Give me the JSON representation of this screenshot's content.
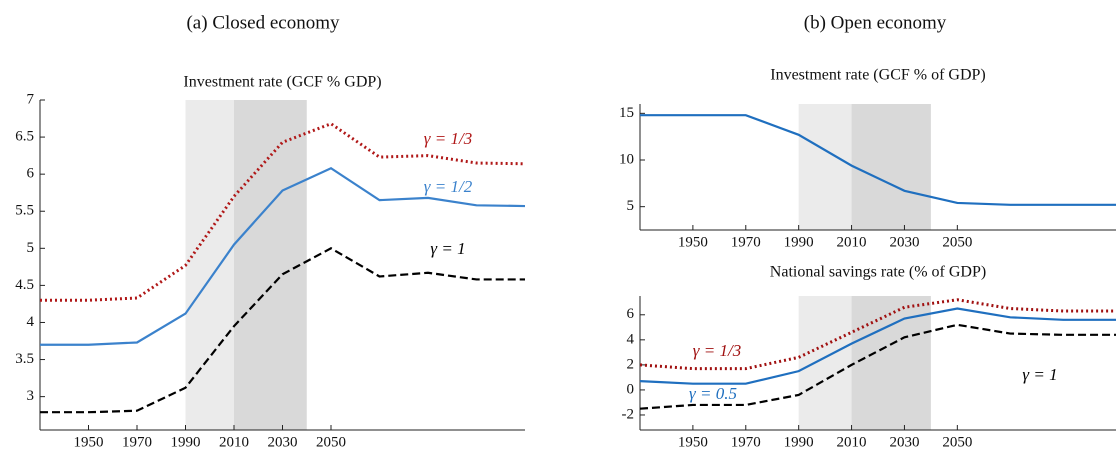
{
  "panel_titles": [
    "(a) Closed economy",
    "(b) Open economy"
  ],
  "chart_data": [
    {
      "type": "line",
      "title": "Investment rate (GCF % GDP)",
      "x": [
        1930,
        1950,
        1970,
        1990,
        2010,
        2030,
        2050,
        2070,
        2090,
        2110,
        2130
      ],
      "xlim": [
        1930,
        2130
      ],
      "xticks": [
        1950,
        1970,
        1990,
        2010,
        2030,
        2050
      ],
      "ylim": [
        2.55,
        7
      ],
      "yticks": [
        3,
        3.5,
        4,
        4.5,
        5,
        5.5,
        6,
        6.5,
        7
      ],
      "shaded_regions": [
        {
          "from": 1990,
          "to": 2010,
          "color": "#ebebeb"
        },
        {
          "from": 2010,
          "to": 2040,
          "color": "#d9d9d9"
        }
      ],
      "series": [
        {
          "name": "γ = 1/3",
          "color": "#b01818",
          "dash": "dotted",
          "values": [
            4.3,
            4.3,
            4.33,
            4.77,
            5.7,
            6.43,
            6.68,
            6.23,
            6.25,
            6.15,
            6.14
          ]
        },
        {
          "name": "γ = 1/2",
          "color": "#3b82cc",
          "dash": "solid",
          "values": [
            3.7,
            3.7,
            3.73,
            4.12,
            5.05,
            5.78,
            6.08,
            5.65,
            5.68,
            5.58,
            5.57
          ]
        },
        {
          "name": "γ = 1",
          "color": "#000000",
          "dash": "dashed",
          "values": [
            2.79,
            2.79,
            2.81,
            3.12,
            3.95,
            4.65,
            5.0,
            4.62,
            4.67,
            4.58,
            4.58
          ]
        }
      ]
    },
    {
      "type": "line",
      "title": "Investment rate (GCF % of GDP)",
      "x": [
        1930,
        1950,
        1970,
        1990,
        2010,
        2030,
        2050,
        2070,
        2090,
        2110
      ],
      "xlim": [
        1930,
        2110
      ],
      "xticks": [
        1950,
        1970,
        1990,
        2010,
        2030,
        2050
      ],
      "ylim": [
        2.5,
        16
      ],
      "yticks": [
        5,
        10,
        15
      ],
      "shaded_regions": [
        {
          "from": 1990,
          "to": 2010,
          "color": "#ebebeb"
        },
        {
          "from": 2010,
          "to": 2040,
          "color": "#d9d9d9"
        }
      ],
      "series": [
        {
          "color": "#1f6fbf",
          "dash": "solid",
          "values": [
            14.8,
            14.8,
            14.8,
            12.7,
            9.4,
            6.7,
            5.4,
            5.2,
            5.2,
            5.2
          ]
        }
      ]
    },
    {
      "type": "line",
      "title": "National savings rate (% of GDP)",
      "x": [
        1930,
        1950,
        1970,
        1990,
        2010,
        2030,
        2050,
        2070,
        2090,
        2110
      ],
      "xlim": [
        1930,
        2110
      ],
      "xticks": [
        1950,
        1970,
        1990,
        2010,
        2030,
        2050
      ],
      "ylim": [
        -3.2,
        7.5
      ],
      "yticks": [
        -2,
        0,
        2,
        4,
        6
      ],
      "shaded_regions": [
        {
          "from": 1990,
          "to": 2010,
          "color": "#ebebeb"
        },
        {
          "from": 2010,
          "to": 2040,
          "color": "#d9d9d9"
        }
      ],
      "series": [
        {
          "name": "γ = 1/3",
          "color": "#a01010",
          "dash": "dotted",
          "values": [
            2.0,
            1.7,
            1.7,
            2.6,
            4.6,
            6.6,
            7.2,
            6.5,
            6.3,
            6.3
          ]
        },
        {
          "name": "γ = 0.5",
          "color": "#1f6fbf",
          "dash": "solid",
          "values": [
            0.7,
            0.5,
            0.5,
            1.5,
            3.7,
            5.7,
            6.5,
            5.8,
            5.6,
            5.6
          ]
        },
        {
          "name": "γ = 1",
          "color": "#000000",
          "dash": "dashed",
          "values": [
            -1.5,
            -1.2,
            -1.2,
            -0.4,
            2.0,
            4.2,
            5.2,
            4.5,
            4.4,
            4.4
          ]
        }
      ]
    }
  ]
}
